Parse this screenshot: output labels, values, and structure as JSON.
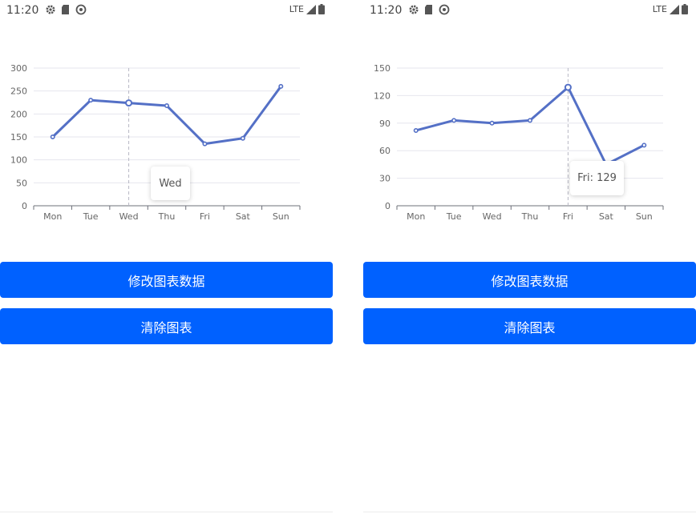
{
  "screens": [
    {
      "status": {
        "time": "11:20",
        "network": "LTE"
      },
      "buttons": {
        "modify_label": "修改图表数据",
        "clear_label": "清除图表"
      },
      "tooltip": {
        "text": "Wed"
      },
      "chart_data": {
        "type": "line",
        "categories": [
          "Mon",
          "Tue",
          "Wed",
          "Thu",
          "Fri",
          "Sat",
          "Sun"
        ],
        "values": [
          150,
          230,
          224,
          218,
          135,
          147,
          260
        ],
        "ylim": [
          0,
          300
        ],
        "yticks": [
          0,
          50,
          100,
          150,
          200,
          250,
          300
        ],
        "highlight_index": 2,
        "grid": "horizontal",
        "line_color": "#5470c6"
      }
    },
    {
      "status": {
        "time": "11:20",
        "network": "LTE"
      },
      "buttons": {
        "modify_label": "修改图表数据",
        "clear_label": "清除图表"
      },
      "tooltip": {
        "text": "Fri: 129"
      },
      "chart_data": {
        "type": "line",
        "categories": [
          "Mon",
          "Tue",
          "Wed",
          "Thu",
          "Fri",
          "Sat",
          "Sun"
        ],
        "values": [
          82,
          93,
          90,
          93,
          129,
          45,
          66
        ],
        "ylim": [
          0,
          150
        ],
        "yticks": [
          0,
          30,
          60,
          90,
          120,
          150
        ],
        "highlight_index": 4,
        "grid": "horizontal",
        "line_color": "#5470c6"
      }
    }
  ]
}
